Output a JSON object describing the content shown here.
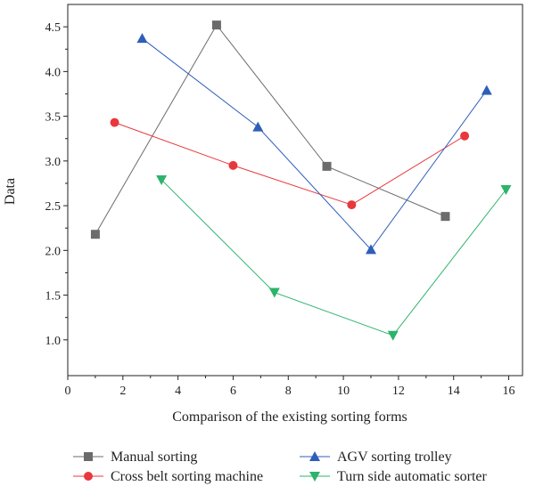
{
  "chart_data": {
    "type": "line",
    "title": "",
    "xlabel": "Comparison of the existing sorting forms",
    "ylabel": "Data",
    "xlim": [
      0,
      16.5
    ],
    "ylim": [
      0.6,
      4.75
    ],
    "xticks": [
      0,
      2,
      4,
      6,
      8,
      10,
      12,
      14,
      16
    ],
    "yticks": [
      1.0,
      1.5,
      2.0,
      2.5,
      3.0,
      3.5,
      4.0,
      4.5
    ],
    "ytick_labels": [
      "1.0",
      "1.5",
      "2.0",
      "2.5",
      "3.0",
      "3.5",
      "4.0",
      "4.5"
    ],
    "grid": false,
    "legend_position": "bottom",
    "series": [
      {
        "name": "Manual sorting",
        "marker": "square",
        "color": "#6b6b6b",
        "points": [
          [
            1.0,
            2.18
          ],
          [
            5.4,
            4.52
          ],
          [
            9.4,
            2.94
          ],
          [
            13.7,
            2.38
          ]
        ]
      },
      {
        "name": "Cross belt sorting machine",
        "marker": "circle",
        "color": "#e8383d",
        "points": [
          [
            1.7,
            3.43
          ],
          [
            6.0,
            2.95
          ],
          [
            10.3,
            2.51
          ],
          [
            14.4,
            3.28
          ]
        ]
      },
      {
        "name": "AGV sorting trolley",
        "marker": "triangle-up",
        "color": "#2e5fb8",
        "points": [
          [
            2.7,
            4.37
          ],
          [
            6.9,
            3.38
          ],
          [
            11.0,
            2.01
          ],
          [
            15.2,
            3.79
          ]
        ]
      },
      {
        "name": "Turn side automatic sorter",
        "marker": "triangle-down",
        "color": "#2db36b",
        "points": [
          [
            3.4,
            2.79
          ],
          [
            7.5,
            1.53
          ],
          [
            11.8,
            1.05
          ],
          [
            15.9,
            2.68
          ]
        ]
      }
    ]
  }
}
